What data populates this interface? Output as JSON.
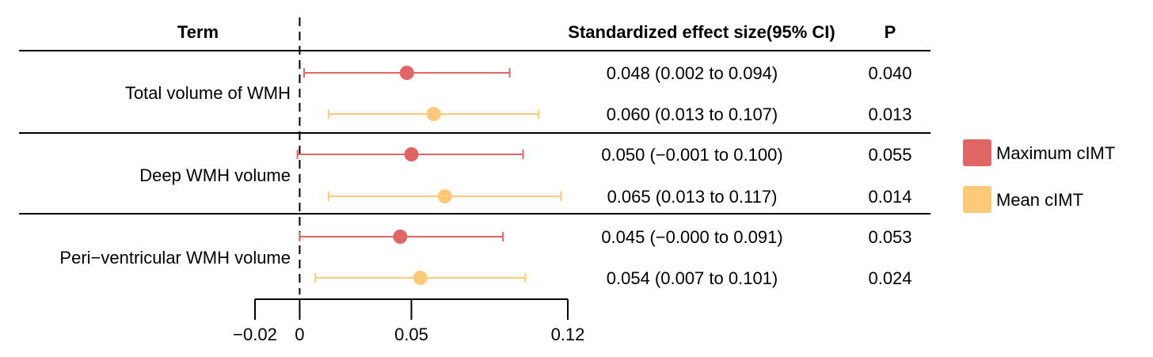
{
  "headers": {
    "term": "Term",
    "effect": "Standardized effect size(95% CI)",
    "p": "P"
  },
  "colors": {
    "Maximum cIMT": "#e06666",
    "Mean cIMT": "#ffc97a"
  },
  "legend": {
    "placement": "right",
    "items": [
      {
        "label": "Maximum cIMT",
        "color": "#e06666"
      },
      {
        "label": "Mean cIMT",
        "color": "#ffc97a"
      }
    ]
  },
  "chart_data": {
    "type": "forest",
    "xlim": [
      -0.02,
      0.12
    ],
    "x_ticks": [
      -0.02,
      0,
      0.05,
      0.12
    ],
    "x_tick_labels": [
      "−0.02",
      "0",
      "0.05",
      "0.12"
    ],
    "reference_line": 0,
    "series_names": [
      "Maximum cIMT",
      "Mean cIMT"
    ],
    "groups": [
      {
        "term": "Total volume of WMH",
        "rows": [
          {
            "series": "Maximum cIMT",
            "est": 0.048,
            "lo": 0.002,
            "hi": 0.094,
            "ci_text": "0.048 (0.002 to 0.094)",
            "p": "0.040"
          },
          {
            "series": "Mean cIMT",
            "est": 0.06,
            "lo": 0.013,
            "hi": 0.107,
            "ci_text": "0.060 (0.013 to 0.107)",
            "p": "0.013"
          }
        ]
      },
      {
        "term": "Deep WMH volume",
        "rows": [
          {
            "series": "Maximum cIMT",
            "est": 0.05,
            "lo": -0.001,
            "hi": 0.1,
            "ci_text": "0.050 (−0.001 to 0.100)",
            "p": "0.055"
          },
          {
            "series": "Mean cIMT",
            "est": 0.065,
            "lo": 0.013,
            "hi": 0.117,
            "ci_text": "0.065 (0.013 to 0.117)",
            "p": "0.014"
          }
        ]
      },
      {
        "term": "Peri−ventricular WMH volume",
        "rows": [
          {
            "series": "Maximum cIMT",
            "est": 0.045,
            "lo": -0.0,
            "hi": 0.091,
            "ci_text": "0.045 (−0.000 to 0.091)",
            "p": "0.053"
          },
          {
            "series": "Mean cIMT",
            "est": 0.054,
            "lo": 0.007,
            "hi": 0.101,
            "ci_text": "0.054 (0.007 to 0.101)",
            "p": "0.024"
          }
        ]
      }
    ]
  }
}
